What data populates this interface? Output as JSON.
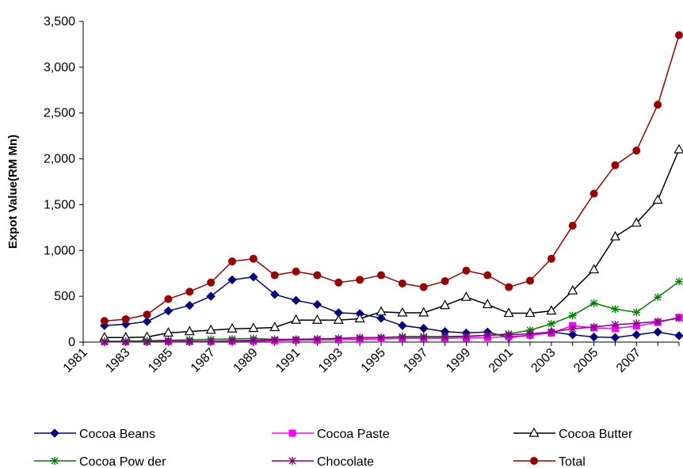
{
  "chart_data": {
    "type": "line",
    "title": "",
    "xlabel": "",
    "ylabel": "Expot Value(RM Mn)",
    "ylim": [
      0,
      3500
    ],
    "yticks": [
      0,
      500,
      1000,
      1500,
      2000,
      2500,
      3000,
      3500
    ],
    "ytick_labels": [
      "0",
      "500",
      "1,000",
      "1,500",
      "2,000",
      "2,500",
      "3,000",
      "3,500"
    ],
    "xtick_labels": [
      "1981",
      "1983",
      "1985",
      "1987",
      "1989",
      "1991",
      "1993",
      "1995",
      "1997",
      "1999",
      "2001",
      "2003",
      "2005",
      "2007"
    ],
    "grid": false,
    "legend_position": "bottom",
    "x": [
      1982,
      1983,
      1984,
      1985,
      1986,
      1987,
      1988,
      1989,
      1990,
      1991,
      1992,
      1993,
      1994,
      1995,
      1996,
      1997,
      1998,
      1999,
      2000,
      2001,
      2002,
      2003,
      2004,
      2005,
      2006,
      2007,
      2008,
      2009
    ],
    "series": [
      {
        "name": "Cocoa Beans",
        "color": "#000080",
        "marker": "diamond",
        "values": [
          180,
          195,
          225,
          340,
          400,
          500,
          680,
          710,
          520,
          455,
          410,
          320,
          310,
          260,
          180,
          150,
          115,
          100,
          110,
          50,
          75,
          110,
          80,
          55,
          50,
          80,
          110,
          70
        ]
      },
      {
        "name": "Cocoa Paste",
        "color": "#ff00ff",
        "marker": "square",
        "values": [
          5,
          5,
          5,
          5,
          5,
          5,
          10,
          10,
          15,
          20,
          20,
          25,
          30,
          35,
          40,
          40,
          40,
          45,
          50,
          60,
          75,
          100,
          180,
          155,
          150,
          175,
          215,
          270
        ]
      },
      {
        "name": "Cocoa Butter",
        "color": "#000000",
        "marker": "triangle",
        "values": [
          50,
          50,
          55,
          100,
          115,
          130,
          145,
          150,
          160,
          240,
          240,
          240,
          255,
          330,
          320,
          320,
          400,
          490,
          410,
          315,
          315,
          340,
          560,
          790,
          1150,
          1300,
          1550,
          2100
        ]
      },
      {
        "name": "Cocoa Pow der",
        "color": "#008000",
        "marker": "star",
        "values": [
          10,
          10,
          15,
          20,
          25,
          30,
          35,
          40,
          30,
          30,
          35,
          40,
          45,
          50,
          60,
          60,
          60,
          65,
          75,
          90,
          130,
          200,
          290,
          425,
          360,
          325,
          490,
          660
        ]
      },
      {
        "name": "Chocolate",
        "color": "#800080",
        "marker": "asterisk",
        "values": [
          5,
          5,
          5,
          10,
          10,
          10,
          15,
          20,
          25,
          30,
          35,
          40,
          50,
          50,
          55,
          55,
          55,
          60,
          75,
          80,
          90,
          110,
          145,
          165,
          190,
          205,
          225,
          260
        ]
      },
      {
        "name": "Total",
        "color": "#990000",
        "marker": "circle",
        "values": [
          230,
          250,
          300,
          470,
          550,
          650,
          880,
          910,
          730,
          770,
          730,
          650,
          680,
          730,
          640,
          600,
          665,
          780,
          730,
          600,
          670,
          910,
          1270,
          1620,
          1930,
          2090,
          2590,
          3350
        ]
      }
    ]
  }
}
